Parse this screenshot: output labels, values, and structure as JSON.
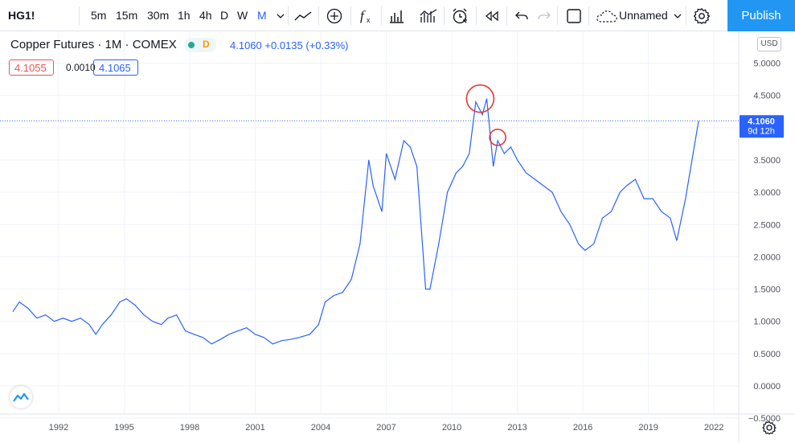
{
  "toolbar": {
    "symbol": "HG1!",
    "intervals": [
      "5m",
      "15m",
      "30m",
      "1h",
      "4h",
      "D",
      "W",
      "M"
    ],
    "active_interval": "M",
    "layout_name": "Unnamed",
    "publish_label": "Publish",
    "icons": [
      "chevron-down-icon",
      "line-chart-icon",
      "add-compare-icon",
      "indicators-fx-icon",
      "bar-chart-icon",
      "templates-icon",
      "alert-clock-icon",
      "replay-icon",
      "undo-icon",
      "redo-icon",
      "fullscreen-icon",
      "cloud-icon",
      "settings-gear-icon"
    ]
  },
  "legend": {
    "title": "Copper Futures · 1M · COMEX",
    "status_letter": "D",
    "last": "4.1060",
    "change": "+0.0135",
    "change_pct": "(+0.33%)",
    "bid": "4.1055",
    "spread": "0.0010",
    "ask": "4.1065"
  },
  "axis": {
    "currency": "USD",
    "last_price_label": "4.1060",
    "countdown": "9d 12h"
  },
  "colors": {
    "line": "#2962ff",
    "bid": "#ef5350",
    "accent": "#2196f3",
    "annotation": "#e53935"
  },
  "chart_data": {
    "type": "line",
    "title": "Copper Futures · 1M · COMEX",
    "xlabel": "",
    "ylabel": "USD",
    "ylim": [
      -0.5,
      5.0
    ],
    "grid": true,
    "y_ticks": [
      "5.0000",
      "4.5000",
      "4.0000",
      "3.5000",
      "3.0000",
      "2.5000",
      "2.0000",
      "1.5000",
      "1.0000",
      "0.5000",
      "0.0000",
      "−0.5000"
    ],
    "x_ticks": [
      "1992",
      "1995",
      "1998",
      "2001",
      "2004",
      "2007",
      "2010",
      "2013",
      "2016",
      "2019",
      "2022"
    ],
    "annotations": [
      {
        "shape": "circle",
        "x": 2011.3,
        "y": 4.45
      },
      {
        "shape": "circle",
        "x": 2012.1,
        "y": 3.85
      }
    ],
    "series": [
      {
        "x": [
          1989.9,
          1990.2,
          1990.6,
          1991.0,
          1991.4,
          1991.8,
          1992.2,
          1992.6,
          1993.0,
          1993.4,
          1993.7,
          1994.0,
          1994.4,
          1994.8,
          1995.1,
          1995.5,
          1995.9,
          1996.3,
          1996.7,
          1997.0,
          1997.4,
          1997.8,
          1998.2,
          1998.6,
          1999.0,
          1999.4,
          1999.8,
          2000.2,
          2000.6,
          2001.0,
          2001.4,
          2001.8,
          2002.2,
          2002.6,
          2003.0,
          2003.5,
          2003.9,
          2004.2,
          2004.6,
          2005.0,
          2005.4,
          2005.8,
          2006.2,
          2006.4,
          2006.8,
          2007.0,
          2007.4,
          2007.8,
          2008.1,
          2008.4,
          2008.8,
          2009.0,
          2009.4,
          2009.8,
          2010.2,
          2010.5,
          2010.8,
          2011.1,
          2011.4,
          2011.6,
          2011.9,
          2012.1,
          2012.4,
          2012.7,
          2013.0,
          2013.4,
          2013.8,
          2014.2,
          2014.6,
          2015.0,
          2015.4,
          2015.8,
          2016.1,
          2016.5,
          2016.9,
          2017.3,
          2017.7,
          2018.0,
          2018.4,
          2018.8,
          2019.2,
          2019.6,
          2020.0,
          2020.3,
          2020.7,
          2021.0,
          2021.3
        ],
        "y": [
          1.15,
          1.3,
          1.2,
          1.05,
          1.1,
          1.0,
          1.05,
          1.0,
          1.05,
          0.95,
          0.8,
          0.95,
          1.1,
          1.3,
          1.35,
          1.25,
          1.1,
          1.0,
          0.95,
          1.05,
          1.1,
          0.85,
          0.8,
          0.75,
          0.65,
          0.72,
          0.8,
          0.85,
          0.9,
          0.8,
          0.75,
          0.65,
          0.7,
          0.72,
          0.75,
          0.8,
          0.95,
          1.3,
          1.4,
          1.45,
          1.65,
          2.2,
          3.5,
          3.1,
          2.7,
          3.6,
          3.2,
          3.8,
          3.7,
          3.4,
          1.5,
          1.5,
          2.2,
          3.0,
          3.3,
          3.4,
          3.6,
          4.4,
          4.2,
          4.45,
          3.4,
          3.8,
          3.6,
          3.7,
          3.5,
          3.3,
          3.2,
          3.1,
          3.0,
          2.7,
          2.5,
          2.2,
          2.1,
          2.2,
          2.6,
          2.7,
          3.0,
          3.1,
          3.2,
          2.9,
          2.9,
          2.7,
          2.6,
          2.25,
          2.9,
          3.5,
          4.106
        ]
      }
    ]
  }
}
